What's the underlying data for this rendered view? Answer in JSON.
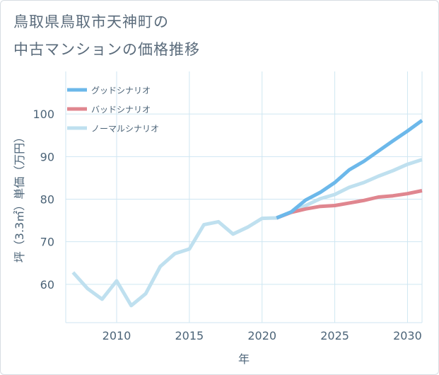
{
  "title": {
    "line1": "鳥取県鳥取市天神町の",
    "line2": "中古マンションの価格推移"
  },
  "chart_data": {
    "type": "line",
    "title": "鳥取県鳥取市天神町の中古マンションの価格推移",
    "xlabel": "年",
    "ylabel": "坪（3.3㎡）単価（万円）",
    "xlim": [
      2006.5,
      2031
    ],
    "ylim": [
      51,
      110
    ],
    "x_ticks": [
      2010,
      2015,
      2020,
      2025,
      2030
    ],
    "y_ticks": [
      60,
      70,
      80,
      90,
      100
    ],
    "grid": true,
    "legend_position": "top-left",
    "series": [
      {
        "name": "グッドシナリオ",
        "color": "#6cb8ea",
        "points": [
          [
            2021,
            75.6
          ],
          [
            2022,
            77.0
          ],
          [
            2023,
            79.8
          ],
          [
            2024,
            81.6
          ],
          [
            2025,
            83.9
          ],
          [
            2026,
            86.9
          ],
          [
            2027,
            88.9
          ],
          [
            2028,
            91.3
          ],
          [
            2029,
            93.7
          ],
          [
            2030,
            96.0
          ],
          [
            2031,
            98.5
          ]
        ]
      },
      {
        "name": "バッドシナリオ",
        "color": "#e0868f",
        "points": [
          [
            2021,
            75.6
          ],
          [
            2022,
            76.9
          ],
          [
            2023,
            77.7
          ],
          [
            2024,
            78.3
          ],
          [
            2025,
            78.5
          ],
          [
            2026,
            79.1
          ],
          [
            2027,
            79.7
          ],
          [
            2028,
            80.5
          ],
          [
            2029,
            80.8
          ],
          [
            2030,
            81.3
          ],
          [
            2031,
            82.0
          ]
        ]
      },
      {
        "name": "ノーマルシナリオ",
        "color": "#bfe0ef",
        "points": [
          [
            2007,
            62.8
          ],
          [
            2008,
            59.0
          ],
          [
            2009,
            56.5
          ],
          [
            2010,
            60.8
          ],
          [
            2011,
            55.0
          ],
          [
            2012,
            57.8
          ],
          [
            2013,
            64.2
          ],
          [
            2014,
            67.2
          ],
          [
            2015,
            68.3
          ],
          [
            2016,
            74.0
          ],
          [
            2017,
            74.7
          ],
          [
            2018,
            71.8
          ],
          [
            2019,
            73.4
          ],
          [
            2020,
            75.5
          ],
          [
            2021,
            75.6
          ],
          [
            2022,
            77.0
          ],
          [
            2023,
            78.5
          ],
          [
            2024,
            80.1
          ],
          [
            2025,
            81.1
          ],
          [
            2026,
            82.8
          ],
          [
            2027,
            83.9
          ],
          [
            2028,
            85.4
          ],
          [
            2029,
            86.7
          ],
          [
            2030,
            88.2
          ],
          [
            2031,
            89.3
          ]
        ]
      }
    ]
  }
}
